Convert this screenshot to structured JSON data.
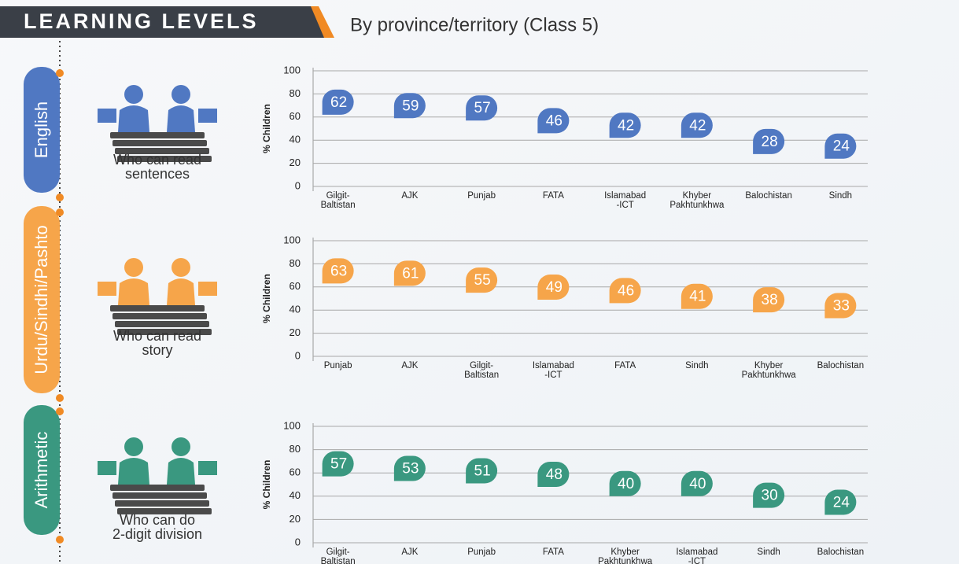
{
  "header": {
    "title": "LEARNING LEVELS",
    "subtitle": "By province/territory (Class 5)"
  },
  "chart_data": [
    {
      "type": "dot",
      "title": "English",
      "caption": [
        "Who can read",
        "sentences"
      ],
      "ylabel": "% Children",
      "categories": [
        "Gilgit- Baltistan",
        "AJK",
        "Punjab",
        "FATA",
        "Islamabad -ICT",
        "Khyber Pakhtunkhwa",
        "Balochistan",
        "Sindh"
      ],
      "values": [
        62,
        59,
        57,
        46,
        42,
        42,
        28,
        24
      ],
      "color": "#5078c2",
      "ylim": [
        0,
        100
      ],
      "yticks": [
        0,
        20,
        40,
        60,
        80,
        100
      ],
      "grid": true
    },
    {
      "type": "dot",
      "title": "Urdu/Sindhi/Pashto",
      "caption": [
        "Who can read",
        "story"
      ],
      "ylabel": "% Children",
      "categories": [
        "Punjab",
        "AJK",
        "Gilgit- Baltistan",
        "Islamabad -ICT",
        "FATA",
        "Sindh",
        "Khyber Pakhtunkhwa",
        "Balochistan"
      ],
      "values": [
        63,
        61,
        55,
        49,
        46,
        41,
        38,
        33
      ],
      "color": "#f6a54a",
      "ylim": [
        0,
        100
      ],
      "yticks": [
        0,
        20,
        40,
        60,
        80,
        100
      ],
      "grid": true
    },
    {
      "type": "dot",
      "title": "Arithmetic",
      "caption": [
        "Who can do",
        "2-digit division"
      ],
      "ylabel": "% Children",
      "categories": [
        "Gilgit- Baltistan",
        "AJK",
        "Punjab",
        "FATA",
        "Khyber Pakhtunkhwa",
        "Islamabad -ICT",
        "Sindh",
        "Balochistan"
      ],
      "values": [
        57,
        53,
        51,
        48,
        40,
        40,
        30,
        24
      ],
      "color": "#3a9880",
      "ylim": [
        0,
        100
      ],
      "yticks": [
        0,
        20,
        40,
        60,
        80,
        100
      ],
      "grid": true
    }
  ]
}
